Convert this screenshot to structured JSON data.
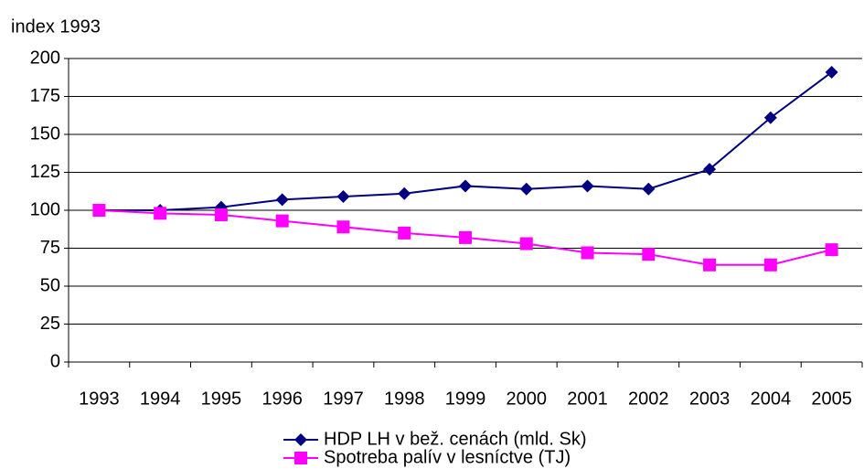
{
  "chart_data": {
    "type": "line",
    "y_label": "index 1993",
    "categories": [
      "1993",
      "1994",
      "1995",
      "1996",
      "1997",
      "1998",
      "1999",
      "2000",
      "2001",
      "2002",
      "2003",
      "2004",
      "2005"
    ],
    "series": [
      {
        "name": "HDP LH v bež. cenách (mld. Sk)",
        "color": "#000080",
        "marker": "diamond",
        "values": [
          100,
          100,
          102,
          107,
          109,
          111,
          116,
          114,
          116,
          114,
          127,
          161,
          191
        ]
      },
      {
        "name": "Spotreba palív v lesníctve (TJ)",
        "color": "#ff00ff",
        "marker": "square",
        "values": [
          100,
          98,
          97,
          93,
          89,
          85,
          82,
          78,
          72,
          71,
          64,
          64,
          74
        ]
      }
    ],
    "ylim": [
      0,
      200
    ],
    "yticks": [
      0,
      25,
      50,
      75,
      100,
      125,
      150,
      175,
      200
    ],
    "grid": true
  }
}
